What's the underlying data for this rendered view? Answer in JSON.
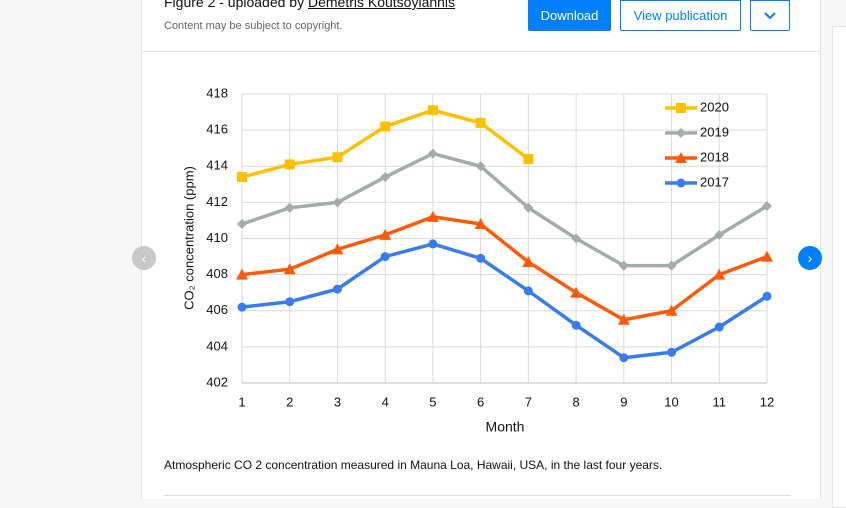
{
  "header": {
    "title_prefix": "Figure 2 - uploaded by",
    "author": "Demetris Koutsoyiannis",
    "notice": "Content may be subject to copyright.",
    "buttons": [
      "Download",
      "View publication"
    ]
  },
  "chart_data": {
    "type": "line",
    "y_label": "CO₂ concentration (ppm)",
    "x_label": "Month",
    "x": [
      1,
      2,
      3,
      4,
      5,
      6,
      7,
      8,
      9,
      10,
      11,
      12
    ],
    "xlim": [
      1,
      12
    ],
    "xticks": [
      1,
      2,
      3,
      4,
      5,
      6,
      7,
      8,
      9,
      10,
      11,
      12
    ],
    "ylim": [
      402,
      418
    ],
    "yticks": [
      402,
      404,
      406,
      408,
      410,
      412,
      414,
      416,
      418
    ],
    "grid": true,
    "legend": "top-right",
    "series": [
      {
        "name": "2020",
        "color": "#ffc000",
        "marker": "square",
        "values": [
          413.4,
          414.1,
          414.5,
          416.2,
          417.1,
          416.4,
          414.4,
          null,
          null,
          null,
          null,
          null
        ]
      },
      {
        "name": "2019",
        "color": "#a5aca7",
        "marker": "diamond",
        "values": [
          410.8,
          411.7,
          412.0,
          413.4,
          414.7,
          414.0,
          411.7,
          410.0,
          408.5,
          408.5,
          410.2,
          411.8
        ]
      },
      {
        "name": "2018",
        "color": "#ff5a0a",
        "marker": "triangle",
        "values": [
          408.0,
          408.3,
          409.4,
          410.2,
          411.2,
          410.8,
          408.7,
          407.0,
          405.5,
          406.0,
          408.0,
          409.0
        ]
      },
      {
        "name": "2017",
        "color": "#3a7bf0",
        "marker": "circle",
        "values": [
          406.2,
          406.5,
          407.2,
          409.0,
          409.7,
          408.9,
          407.1,
          405.2,
          403.4,
          403.7,
          405.1,
          406.8
        ]
      }
    ]
  },
  "caption": "Atmospheric CO 2 concentration measured in Mauna Loa, Hawaii, USA, in the last four years."
}
